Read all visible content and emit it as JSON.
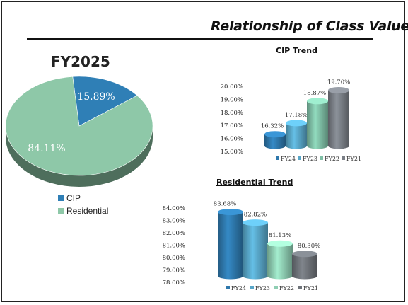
{
  "page": {
    "title": "Relationship of Class Values"
  },
  "chart_data": [
    {
      "type": "pie",
      "title": "FY2025",
      "labels": [
        "CIP",
        "Residential"
      ],
      "values": [
        15.89,
        84.11
      ],
      "value_labels": [
        "15.89%",
        "84.11%"
      ],
      "colors": [
        "#2f7fb6",
        "#8ec8a8"
      ],
      "legend": "bottom-left"
    },
    {
      "type": "bar",
      "title": "CIP Trend",
      "categories": [
        "FY24",
        "FY23",
        "FY22",
        "FY21"
      ],
      "values": [
        16.32,
        17.18,
        18.87,
        19.7
      ],
      "value_labels": [
        "16.32%",
        "17.18%",
        "18.87%",
        "19.70%"
      ],
      "colors": [
        "#2e78ac",
        "#58a6c8",
        "#7fbfa6",
        "#7a7f86"
      ],
      "ylim": [
        15,
        20
      ],
      "yticks": [
        "15.00%",
        "16.00%",
        "17.00%",
        "18.00%",
        "19.00%",
        "20.00%"
      ],
      "legend": "bottom"
    },
    {
      "type": "bar",
      "title": "Residential Trend",
      "categories": [
        "FY24",
        "FY23",
        "FY22",
        "FY21"
      ],
      "values": [
        83.68,
        82.82,
        81.13,
        80.3
      ],
      "value_labels": [
        "83.68%",
        "82.82%",
        "81.13%",
        "80.30%"
      ],
      "colors": [
        "#2e78ac",
        "#58a6c8",
        "#8fceb3",
        "#6f747a"
      ],
      "ylim": [
        78,
        84
      ],
      "yticks": [
        "78.00%",
        "79.00%",
        "80.00%",
        "81.00%",
        "82.00%",
        "83.00%",
        "84.00%"
      ],
      "legend": "bottom"
    }
  ]
}
